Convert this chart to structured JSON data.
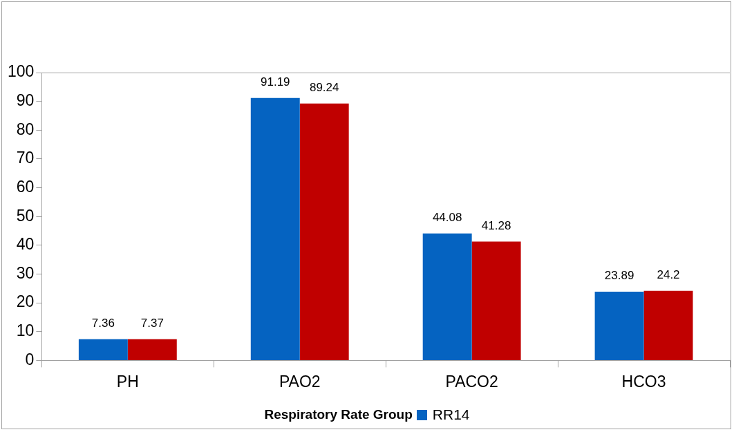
{
  "chart_data": {
    "type": "bar",
    "categories": [
      "PH",
      "PAO2",
      "PACO2",
      "HCO3"
    ],
    "series": [
      {
        "name": "RR14",
        "color": "#0563c1",
        "values": [
          7.36,
          91.19,
          44.08,
          23.89
        ]
      },
      {
        "color": "#c00000",
        "values": [
          7.37,
          89.24,
          41.28,
          24.2
        ]
      }
    ],
    "ylim": [
      0,
      100
    ],
    "yticks": [
      0,
      10,
      20,
      30,
      40,
      50,
      60,
      70,
      80,
      90,
      100
    ],
    "grid": false,
    "legend": "bottom",
    "legend_title": "Respiratory Rate Group",
    "data_labels": true
  }
}
